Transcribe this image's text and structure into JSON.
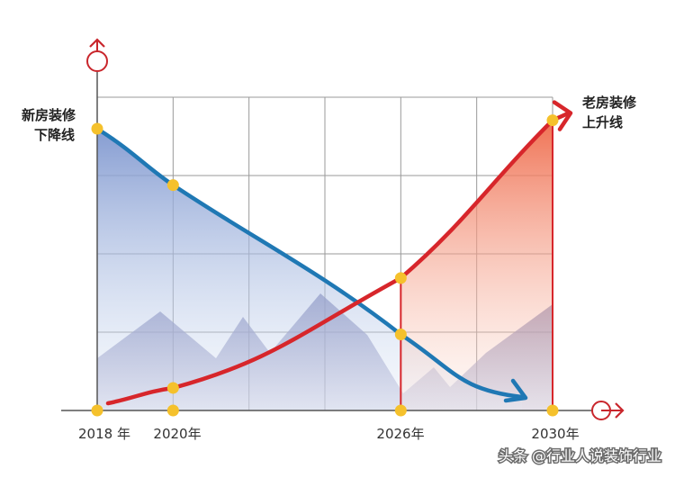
{
  "chart_data": {
    "type": "line",
    "x_ticks": [
      "2018 年",
      "2020年",
      "2026年",
      "2030年"
    ],
    "series": [
      {
        "name": "新房装修下降线",
        "name_lines": [
          "新房装修",
          "下降线"
        ],
        "color": "#1f78b4",
        "fill_top": "#7f97cf",
        "points": [
          [
            2018,
            100
          ],
          [
            2020,
            80
          ],
          [
            2026,
            27
          ],
          [
            2030,
            1
          ]
        ]
      },
      {
        "name": "老房装修上升线",
        "name_lines": [
          "老房装修",
          "上升线"
        ],
        "color": "#d7262b",
        "fill_top": "#ef6a4a",
        "points": [
          [
            2018,
            1
          ],
          [
            2020,
            8
          ],
          [
            2026,
            47
          ],
          [
            2030,
            103
          ]
        ]
      }
    ],
    "grid": true,
    "marker_color": "#f5c12c"
  },
  "watermark": "头条 @行业人说装饰行业"
}
